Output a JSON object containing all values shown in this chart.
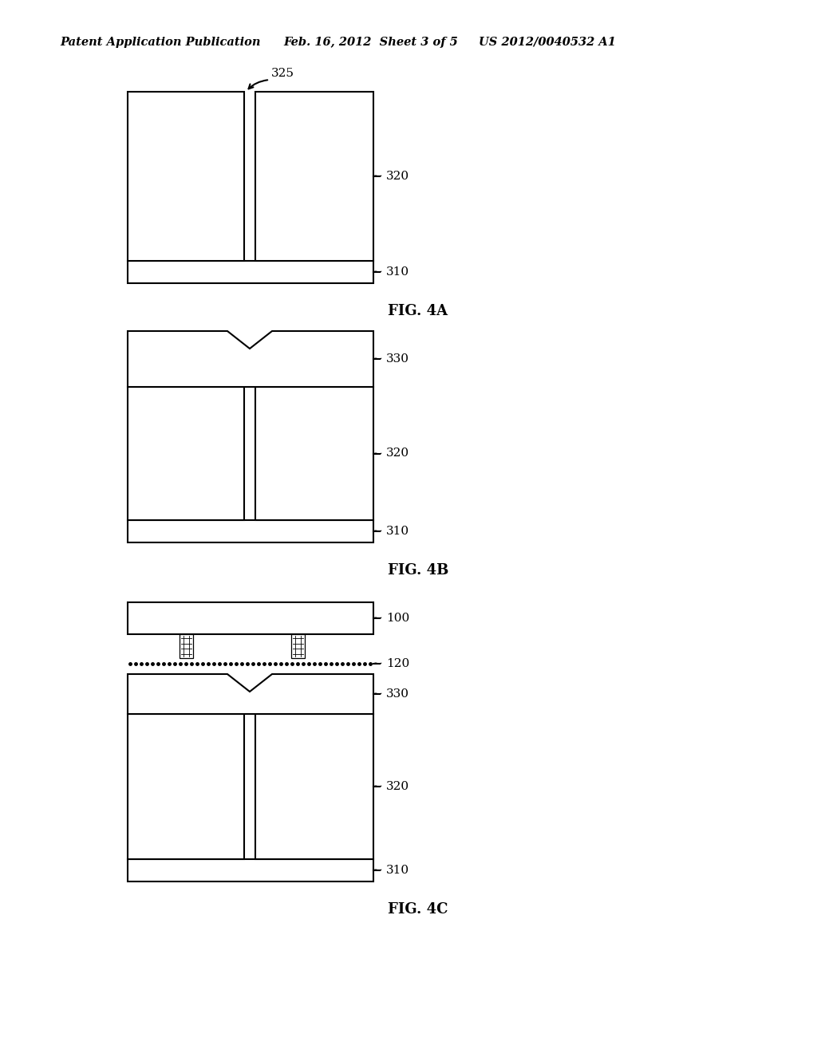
{
  "bg_color": "#ffffff",
  "line_color": "#000000",
  "line_width": 1.5,
  "header_left": "Patent Application Publication",
  "header_mid": "Feb. 16, 2012  Sheet 3 of 5",
  "header_right": "US 2012/0040532 A1",
  "fig4a_label": "FIG. 4A",
  "fig4b_label": "FIG. 4B",
  "fig4c_label": "FIG. 4C",
  "label_325": "325",
  "label_320": "320",
  "label_310": "310",
  "label_330": "330",
  "label_100": "100",
  "label_120": "120"
}
